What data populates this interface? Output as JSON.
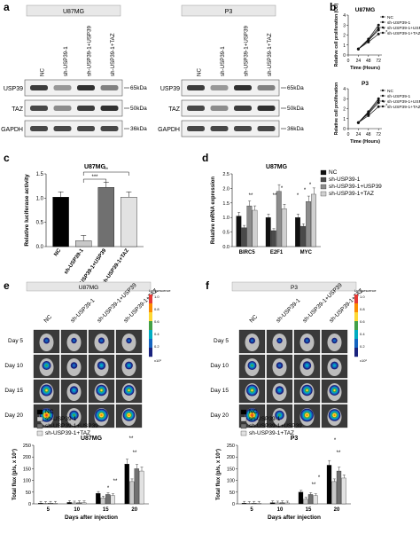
{
  "panels": {
    "a": {
      "letter": "a",
      "u87": {
        "header": "U87MG"
      },
      "p3": {
        "header": "P3"
      },
      "lanes": [
        "NC",
        "sh-USP39-1",
        "sh-USP39-1+USP39",
        "sh-USP39-1+TAZ"
      ],
      "rows": [
        "USP39",
        "TAZ",
        "GAPDH"
      ],
      "kda": [
        "65kDa",
        "50kDa",
        "36kDa"
      ]
    },
    "b": {
      "letter": "b"
    },
    "c": {
      "letter": "c"
    },
    "d": {
      "letter": "d"
    },
    "e": {
      "letter": "e",
      "header": "U87MG",
      "lanes": [
        "NC",
        "sh-USP39-1",
        "sh-USP39-1+USP39",
        "sh-USP39-1+TAZ"
      ],
      "days": [
        "Day  5",
        "Day 10",
        "Day 15",
        "Day 20"
      ],
      "scale_title": "Luminescence",
      "scale_ticks": [
        "1.0",
        "0.8",
        "0.6",
        "0.4",
        "0.2"
      ],
      "scale_unit": "x10⁶"
    },
    "f": {
      "letter": "f",
      "header": "P3",
      "lanes": [
        "NC",
        "sh-USP39-1",
        "sh-USP39-1+USP39",
        "sh-USP39-1+TAZ"
      ],
      "days": [
        "Day  5",
        "Day 10",
        "Day 15",
        "Day 20"
      ],
      "scale_title": "Luminescence",
      "scale_ticks": [
        "1.0",
        "0.8",
        "0.6",
        "0.4",
        "0.2"
      ],
      "scale_unit": "x10⁶"
    }
  },
  "colors": {
    "nc": "#000000",
    "sh": "#c8c8c8",
    "usp39": "#707070",
    "taz": "#e2e2e2",
    "d_nc": "#111111",
    "d_sh": "#4a4a4a",
    "d_usp39": "#8c8c8c",
    "d_taz": "#d0d0d0"
  },
  "chart_data": [
    {
      "id": "b1",
      "type": "line",
      "title": "U87MG",
      "xlabel": "Time (Hours)",
      "ylabel": "Relative cell proliferation (OD)",
      "x": [
        0,
        24,
        48,
        72
      ],
      "xlim": [
        0,
        80
      ],
      "ylim": [
        0,
        4
      ],
      "series": [
        {
          "name": "NC",
          "values": [
            null,
            0.6,
            1.6,
            3.0
          ]
        },
        {
          "name": "sh-USP39-1",
          "values": [
            null,
            0.6,
            1.3,
            2.1
          ]
        },
        {
          "name": "sh-USP39-1+USP39",
          "values": [
            null,
            0.6,
            1.5,
            2.7
          ]
        },
        {
          "name": "sh-USP39-1+TAZ",
          "values": [
            null,
            0.6,
            1.45,
            2.5
          ]
        }
      ]
    },
    {
      "id": "b2",
      "type": "line",
      "title": "P3",
      "xlabel": "Time (Hours)",
      "ylabel": "Relative cell proliferation",
      "x": [
        0,
        24,
        48,
        72
      ],
      "xlim": [
        0,
        80
      ],
      "ylim": [
        0,
        4
      ],
      "series": [
        {
          "name": "NC",
          "values": [
            null,
            0.6,
            1.7,
            3.0
          ]
        },
        {
          "name": "sh-USP39-1",
          "values": [
            null,
            0.6,
            1.3,
            2.2
          ]
        },
        {
          "name": "sh-USP39-1+USP39",
          "values": [
            null,
            0.6,
            1.6,
            2.8
          ]
        },
        {
          "name": "sh-USP39-1+TAZ",
          "values": [
            null,
            0.6,
            1.5,
            2.6
          ]
        }
      ]
    },
    {
      "id": "c",
      "type": "bar",
      "title": "U87MG",
      "ylabel": "Relative luciferase activity",
      "categories": [
        "NC",
        "sh-USP39-1",
        "sh-USP39-1+USP39",
        "sh-USP39-1+TAZ"
      ],
      "values": [
        1.02,
        0.12,
        1.22,
        1.02
      ],
      "ylim": [
        0,
        1.5
      ],
      "yticks": [
        "0.0",
        "0.5",
        "1.0",
        "1.5"
      ],
      "sig": [
        "***",
        "**"
      ]
    },
    {
      "id": "d",
      "type": "bar",
      "title": "U87MG",
      "ylabel": "Relative mRNA expression",
      "categories": [
        "BIRC5",
        "E2F1",
        "MYC"
      ],
      "ylim": [
        0,
        2.5
      ],
      "yticks": [
        "0.0",
        "0.5",
        "1.0",
        "1.5",
        "2.0",
        "2.5"
      ],
      "series": [
        {
          "name": "NC",
          "values": [
            1.05,
            1.0,
            1.0
          ]
        },
        {
          "name": "sh-USP39-1",
          "values": [
            0.65,
            0.55,
            0.7
          ]
        },
        {
          "name": "sh-USP39-1+USP39",
          "values": [
            1.4,
            1.9,
            1.55
          ]
        },
        {
          "name": "sh-USP39-1+TAZ",
          "values": [
            1.25,
            1.3,
            1.8
          ]
        }
      ],
      "sig": [
        "**",
        "**",
        "*",
        "*",
        "*",
        "*"
      ]
    },
    {
      "id": "e",
      "type": "bar",
      "title": "U87MG",
      "xlabel": "Days after injection",
      "ylabel": "Total flux (p/s, x 10⁷)",
      "categories": [
        "5",
        "10",
        "15",
        "20"
      ],
      "ylim": [
        0,
        250
      ],
      "yticks": [
        "0",
        "50",
        "100",
        "150",
        "200",
        "250"
      ],
      "series": [
        {
          "name": "NC",
          "values": [
            3,
            6,
            45,
            170
          ]
        },
        {
          "name": "sh-USP39-1",
          "values": [
            2,
            4,
            25,
            95
          ]
        },
        {
          "name": "sh-USP39-1+USP39",
          "values": [
            3,
            5,
            40,
            150
          ]
        },
        {
          "name": "sh-USP39-1+TAZ",
          "values": [
            3,
            5,
            35,
            140
          ]
        }
      ],
      "sig": [
        "**",
        "*",
        "**",
        "**"
      ]
    },
    {
      "id": "f",
      "type": "bar",
      "title": "P3",
      "xlabel": "Days after injection",
      "ylabel": "Total flux (p/s, x 10⁷)",
      "categories": [
        "5",
        "10",
        "15",
        "20"
      ],
      "ylim": [
        0,
        250
      ],
      "yticks": [
        "0",
        "50",
        "100",
        "150",
        "200",
        "250"
      ],
      "series": [
        {
          "name": "NC",
          "values": [
            3,
            5,
            50,
            165
          ]
        },
        {
          "name": "sh-USP39-1",
          "values": [
            2,
            4,
            20,
            95
          ]
        },
        {
          "name": "sh-USP39-1+USP39",
          "values": [
            3,
            5,
            40,
            140
          ]
        },
        {
          "name": "sh-USP39-1+TAZ",
          "values": [
            3,
            4,
            35,
            110
          ]
        }
      ],
      "sig": [
        "*",
        "**",
        "*",
        "**"
      ]
    }
  ]
}
